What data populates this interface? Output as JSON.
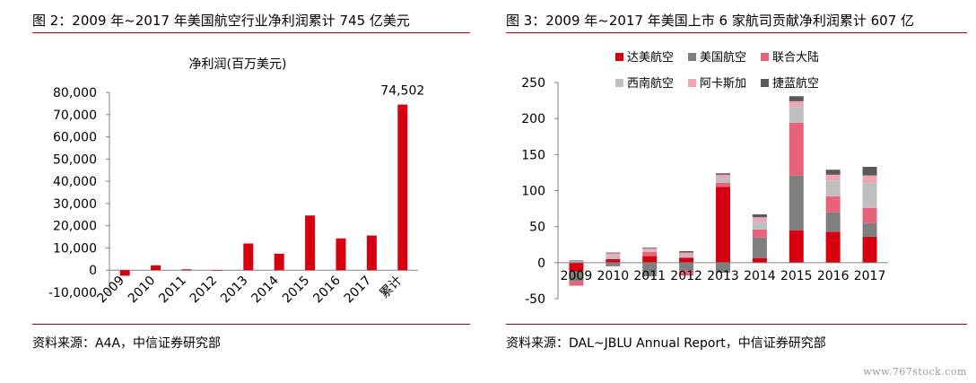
{
  "left": {
    "figure_title": "图 2：2009 年~2017 年美国航空行业净利润累计 745 亿美元",
    "source": "资料来源：A4A，中信证券研究部"
  },
  "right": {
    "figure_title": "图 3：2009 年~2017 年美国上市 6 家航司贡献净利润累计 607 亿",
    "source": "资料来源：DAL~JBLU Annual Report，中信证券研究部"
  },
  "watermark": "www.767stock.com",
  "colors": {
    "red": "#d7000f",
    "gray": "#7f7f7f",
    "pink": "#e8637a",
    "light_gray": "#bfbfbf",
    "pale_pink": "#f2a3b4",
    "dark_gray": "#595959",
    "rule": "#c00000"
  },
  "chart_data": [
    {
      "type": "bar",
      "title": "净利润(百万美元)",
      "categories": [
        "2009",
        "2010",
        "2011",
        "2012",
        "2013",
        "2014",
        "2015",
        "2016",
        "2017",
        "累计"
      ],
      "values": [
        -2500,
        2200,
        400,
        -100,
        12000,
        7400,
        24600,
        14300,
        15600,
        74502
      ],
      "data_labels": [
        {
          "index": 9,
          "text": "74,502"
        }
      ],
      "yticks": [
        "80,000",
        "70,000",
        "60,000",
        "50,000",
        "40,000",
        "30,000",
        "20,000",
        "10,000",
        "0",
        "-10,000"
      ],
      "ylim": [
        -10000,
        80000
      ],
      "grid": false,
      "color": "#d7000f"
    },
    {
      "type": "bar",
      "stacked": true,
      "categories": [
        "2009",
        "2010",
        "2011",
        "2012",
        "2013",
        "2014",
        "2015",
        "2016",
        "2017"
      ],
      "yticks": [
        "250",
        "200",
        "150",
        "100",
        "50",
        "0",
        "-50"
      ],
      "ylim": [
        -50,
        250
      ],
      "grid": false,
      "legend_position": "top",
      "series": [
        {
          "name": "达美航空",
          "color": "#d7000f",
          "values": [
            -12,
            5,
            9,
            7,
            105,
            6,
            45,
            43,
            36
          ]
        },
        {
          "name": "美国航空",
          "color": "#7f7f7f",
          "values": [
            -14,
            -5,
            -19,
            -11,
            -14,
            29,
            76,
            27,
            19
          ]
        },
        {
          "name": "联合大陆",
          "color": "#e8637a",
          "values": [
            -6,
            0,
            6,
            -7,
            6,
            11,
            73,
            22,
            21
          ]
        },
        {
          "name": "西南航空",
          "color": "#bfbfbf",
          "values": [
            1,
            5,
            2,
            4,
            7,
            11,
            22,
            22,
            35
          ]
        },
        {
          "name": "阿卡斯加",
          "color": "#f2a3b4",
          "values": [
            1,
            3,
            3,
            3,
            4,
            6,
            8,
            8,
            10
          ]
        },
        {
          "name": "捷蓝航空",
          "color": "#595959",
          "values": [
            1,
            1,
            1,
            2,
            2,
            4,
            7,
            7,
            12
          ]
        }
      ]
    }
  ]
}
